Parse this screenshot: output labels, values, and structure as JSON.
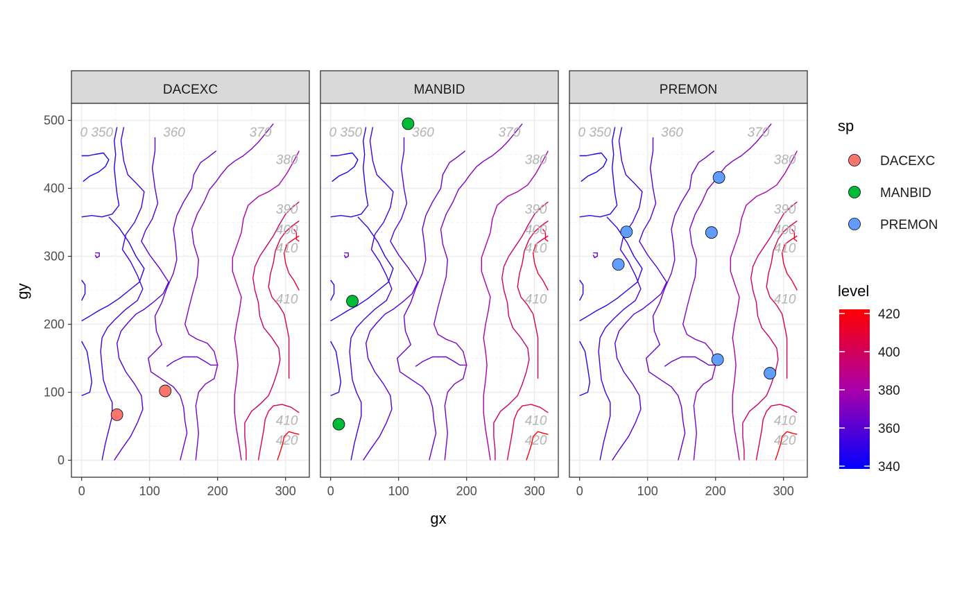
{
  "chart_data": {
    "type": "scatter",
    "subtype": "faceted contour plot with species points",
    "xlabel": "gx",
    "ylabel": "gy",
    "xlim": [
      -15,
      335
    ],
    "ylim": [
      -25,
      525
    ],
    "x_ticks": [
      0,
      100,
      200,
      300
    ],
    "y_ticks": [
      0,
      100,
      200,
      300,
      400,
      500
    ],
    "grid": true,
    "facets": [
      "DACEXC",
      "MANBID",
      "PREMON"
    ],
    "series": [
      {
        "name": "DACEXC",
        "color": "#F8766D",
        "points": [
          [
            52,
            67
          ],
          [
            123,
            102
          ]
        ]
      },
      {
        "name": "MANBID",
        "color": "#00BA38",
        "points": [
          [
            114,
            495
          ],
          [
            32,
            234
          ],
          [
            12,
            53
          ]
        ]
      },
      {
        "name": "PREMON",
        "color": "#619CFF",
        "points": [
          [
            205,
            416
          ],
          [
            69,
            336
          ],
          [
            194,
            335
          ],
          [
            57,
            288
          ],
          [
            203,
            148
          ],
          [
            280,
            128
          ]
        ]
      }
    ],
    "contours": [
      {
        "level": 345,
        "points": [
          [
            2,
            410
          ],
          [
            12,
            418
          ],
          [
            25,
            424
          ],
          [
            35,
            432
          ],
          [
            40,
            442
          ],
          [
            32,
            452
          ],
          [
            20,
            450
          ],
          [
            10,
            448
          ],
          [
            0,
            448
          ]
        ]
      },
      {
        "level": 350,
        "points": [
          [
            0,
            358
          ],
          [
            15,
            360
          ],
          [
            30,
            358
          ],
          [
            45,
            362
          ],
          [
            55,
            375
          ],
          [
            52,
            392
          ],
          [
            50,
            410
          ],
          [
            48,
            430
          ],
          [
            50,
            450
          ],
          [
            48,
            470
          ],
          [
            52,
            490
          ]
        ]
      },
      {
        "level": 350,
        "points": [
          [
            0,
            205
          ],
          [
            12,
            212
          ],
          [
            25,
            220
          ],
          [
            40,
            228
          ],
          [
            55,
            238
          ],
          [
            70,
            250
          ],
          [
            85,
            262
          ],
          [
            92,
            282
          ],
          [
            80,
            300
          ],
          [
            70,
            320
          ],
          [
            55,
            342
          ],
          [
            40,
            358
          ]
        ]
      },
      {
        "level": 350,
        "points": [
          [
            0,
            235
          ],
          [
            5,
            245
          ],
          [
            5,
            258
          ],
          [
            0,
            265
          ]
        ]
      },
      {
        "level": 350,
        "points": [
          [
            0,
            175
          ],
          [
            8,
            160
          ],
          [
            12,
            135
          ],
          [
            15,
            115
          ],
          [
            12,
            100
          ],
          [
            0,
            95
          ]
        ]
      },
      {
        "level": 355,
        "points": [
          [
            62,
            490
          ],
          [
            58,
            470
          ],
          [
            62,
            440
          ],
          [
            68,
            420
          ],
          [
            80,
            408
          ],
          [
            92,
            395
          ],
          [
            88,
            372
          ],
          [
            78,
            350
          ],
          [
            65,
            332
          ],
          [
            60,
            310
          ],
          [
            72,
            292
          ],
          [
            82,
            272
          ],
          [
            90,
            252
          ],
          [
            82,
            235
          ],
          [
            65,
            222
          ],
          [
            50,
            208
          ],
          [
            38,
            195
          ],
          [
            30,
            180
          ],
          [
            28,
            160
          ],
          [
            30,
            138
          ],
          [
            32,
            118
          ],
          [
            38,
            100
          ],
          [
            45,
            85
          ],
          [
            45,
            65
          ],
          [
            40,
            45
          ],
          [
            35,
            25
          ],
          [
            30,
            0
          ]
        ]
      },
      {
        "level": 360,
        "points": [
          [
            108,
            475
          ],
          [
            108,
            455
          ],
          [
            104,
            430
          ],
          [
            108,
            400
          ],
          [
            112,
            378
          ],
          [
            104,
            355
          ],
          [
            94,
            338
          ],
          [
            88,
            322
          ],
          [
            100,
            302
          ],
          [
            115,
            282
          ],
          [
            128,
            262
          ],
          [
            120,
            245
          ],
          [
            105,
            232
          ],
          [
            92,
            222
          ],
          [
            80,
            215
          ],
          [
            68,
            202
          ],
          [
            58,
            190
          ],
          [
            52,
            172
          ],
          [
            55,
            150
          ],
          [
            65,
            130
          ],
          [
            78,
            112
          ],
          [
            88,
            95
          ],
          [
            90,
            75
          ],
          [
            82,
            55
          ],
          [
            72,
            35
          ],
          [
            58,
            15
          ],
          [
            48,
            0
          ]
        ]
      },
      {
        "level": 365,
        "points": [
          [
            198,
            455
          ],
          [
            185,
            445
          ],
          [
            175,
            438
          ],
          [
            165,
            420
          ],
          [
            162,
            400
          ],
          [
            150,
            380
          ],
          [
            140,
            360
          ],
          [
            135,
            340
          ],
          [
            138,
            318
          ],
          [
            140,
            295
          ],
          [
            135,
            275
          ],
          [
            125,
            252
          ],
          [
            118,
            232
          ],
          [
            108,
            212
          ],
          [
            110,
            190
          ],
          [
            118,
            170
          ],
          [
            108,
            160
          ],
          [
            98,
            150
          ],
          [
            102,
            130
          ],
          [
            120,
            118
          ],
          [
            135,
            108
          ],
          [
            145,
            95
          ],
          [
            150,
            78
          ],
          [
            152,
            58
          ],
          [
            155,
            40
          ],
          [
            150,
            20
          ],
          [
            145,
            0
          ]
        ]
      },
      {
        "level": 365,
        "points": [
          [
            125,
            138
          ],
          [
            135,
            145
          ],
          [
            150,
            152
          ],
          [
            170,
            152
          ],
          [
            182,
            145
          ],
          [
            190,
            140
          ],
          [
            196,
            140
          ]
        ]
      },
      {
        "level": 370,
        "points": [
          [
            282,
            495
          ],
          [
            270,
            480
          ],
          [
            260,
            468
          ],
          [
            250,
            458
          ],
          [
            238,
            448
          ],
          [
            225,
            440
          ],
          [
            215,
            432
          ],
          [
            205,
            420
          ],
          [
            198,
            410
          ],
          [
            188,
            398
          ],
          [
            180,
            380
          ],
          [
            170,
            362
          ],
          [
            162,
            340
          ],
          [
            165,
            318
          ],
          [
            172,
            295
          ],
          [
            170,
            270
          ],
          [
            164,
            248
          ],
          [
            158,
            225
          ],
          [
            152,
            200
          ],
          [
            158,
            185
          ],
          [
            170,
            178
          ],
          [
            185,
            172
          ],
          [
            195,
            160
          ],
          [
            200,
            140
          ],
          [
            195,
            120
          ],
          [
            182,
            112
          ],
          [
            172,
            100
          ],
          [
            168,
            80
          ],
          [
            170,
            60
          ],
          [
            172,
            40
          ],
          [
            170,
            20
          ],
          [
            168,
            0
          ]
        ]
      },
      {
        "level": 380,
        "points": [
          [
            320,
            455
          ],
          [
            312,
            440
          ],
          [
            302,
            422
          ],
          [
            290,
            405
          ],
          [
            275,
            395
          ],
          [
            260,
            388
          ],
          [
            245,
            375
          ],
          [
            238,
            355
          ],
          [
            235,
            335
          ],
          [
            228,
            315
          ],
          [
            222,
            298
          ],
          [
            222,
            278
          ],
          [
            228,
            260
          ],
          [
            235,
            240
          ],
          [
            232,
            220
          ],
          [
            228,
            200
          ],
          [
            225,
            180
          ],
          [
            228,
            160
          ],
          [
            230,
            140
          ],
          [
            228,
            118
          ],
          [
            225,
            95
          ],
          [
            225,
            70
          ],
          [
            228,
            45
          ],
          [
            232,
            20
          ],
          [
            235,
            0
          ]
        ]
      },
      {
        "level": 395,
        "points": [
          [
            320,
            380
          ],
          [
            310,
            372
          ],
          [
            300,
            362
          ],
          [
            290,
            345
          ],
          [
            282,
            330
          ],
          [
            272,
            315
          ],
          [
            262,
            300
          ],
          [
            255,
            285
          ],
          [
            252,
            268
          ],
          [
            255,
            250
          ],
          [
            260,
            232
          ],
          [
            262,
            212
          ],
          [
            268,
            195
          ],
          [
            280,
            180
          ],
          [
            290,
            165
          ],
          [
            292,
            148
          ],
          [
            288,
            130
          ],
          [
            282,
            112
          ],
          [
            275,
            95
          ],
          [
            262,
            82
          ],
          [
            250,
            72
          ],
          [
            240,
            55
          ],
          [
            240,
            35
          ],
          [
            242,
            15
          ],
          [
            242,
            0
          ]
        ]
      },
      {
        "level": 402,
        "points": [
          [
            320,
            352
          ],
          [
            310,
            345
          ],
          [
            300,
            336
          ],
          [
            292,
            325
          ],
          [
            285,
            308
          ],
          [
            282,
            290
          ],
          [
            278,
            275
          ],
          [
            275,
            255
          ],
          [
            280,
            240
          ],
          [
            290,
            228
          ],
          [
            298,
            215
          ],
          [
            302,
            195
          ],
          [
            305,
            180
          ],
          [
            305,
            160
          ],
          [
            305,
            140
          ],
          [
            305,
            120
          ]
        ]
      },
      {
        "level": 408,
        "points": [
          [
            320,
            330
          ],
          [
            312,
            325
          ],
          [
            302,
            318
          ],
          [
            298,
            305
          ],
          [
            300,
            290
          ],
          [
            305,
            275
          ],
          [
            312,
            265
          ],
          [
            320,
            250
          ]
        ]
      },
      {
        "level": 405,
        "points": [
          [
            320,
            70
          ],
          [
            308,
            78
          ],
          [
            295,
            82
          ],
          [
            282,
            80
          ],
          [
            275,
            72
          ],
          [
            270,
            60
          ],
          [
            268,
            45
          ],
          [
            265,
            28
          ],
          [
            262,
            12
          ],
          [
            260,
            0
          ]
        ]
      },
      {
        "level": 418,
        "points": [
          [
            320,
            38
          ],
          [
            312,
            40
          ],
          [
            305,
            42
          ],
          [
            298,
            35
          ],
          [
            296,
            25
          ],
          [
            292,
            12
          ],
          [
            288,
            0
          ]
        ]
      },
      {
        "level": 412,
        "points": [
          [
            312,
            340
          ],
          [
            316,
            335
          ],
          [
            316,
            325
          ],
          [
            320,
            322
          ]
        ]
      },
      {
        "level": 365,
        "points": [
          [
            20,
            305
          ],
          [
            26,
            305
          ],
          [
            26,
            300
          ],
          [
            22,
            298
          ],
          [
            20,
            302
          ]
        ]
      },
      {
        "level": 382,
        "points": [
          [
            196,
            140
          ],
          [
            201,
            140
          ]
        ]
      }
    ],
    "contour_labels": [
      {
        "text": "0 350",
        "x": 22,
        "y": 483
      },
      {
        "text": "360",
        "x": 136,
        "y": 483
      },
      {
        "text": "370",
        "x": 263,
        "y": 483
      },
      {
        "text": "380",
        "x": 302,
        "y": 443
      },
      {
        "text": "390",
        "x": 302,
        "y": 370
      },
      {
        "text": "400",
        "x": 302,
        "y": 340
      },
      {
        "text": "410",
        "x": 302,
        "y": 313
      },
      {
        "text": "410",
        "x": 302,
        "y": 238
      },
      {
        "text": "410",
        "x": 302,
        "y": 59
      },
      {
        "text": "420",
        "x": 302,
        "y": 30
      }
    ],
    "legend_sp": {
      "title": "sp",
      "entries": [
        {
          "label": "DACEXC",
          "color": "#F8766D"
        },
        {
          "label": "MANBID",
          "color": "#00BA38"
        },
        {
          "label": "PREMON",
          "color": "#619CFF"
        }
      ]
    },
    "legend_level": {
      "title": "level",
      "min": 340,
      "max": 420,
      "ticks": [
        340,
        360,
        380,
        400,
        420
      ],
      "low_color": "#0000FF",
      "high_color": "#FF0000"
    },
    "colors": {
      "strip_bg": "#D9D9D9",
      "panel_border": "#333333",
      "grid_major": "#EBEBEB",
      "grid_minor": "#F2F2F2",
      "contour_label": "#B3B3B3",
      "tick_text": "#4D4D4D"
    }
  }
}
